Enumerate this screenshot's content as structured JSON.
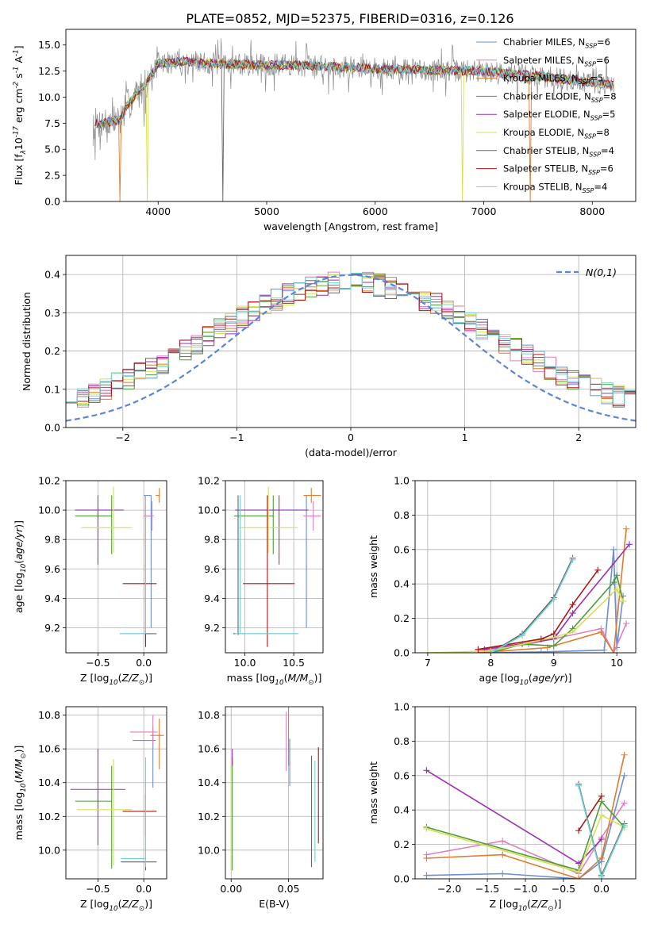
{
  "title": "PLATE=0852, MJD=52375, FIBERID=0316, z=0.126",
  "colors": {
    "chabrier_miles": "#6a8fd6",
    "salpeter_miles": "#e07fbf",
    "kroupa_miles": "#e07b2e",
    "chabrier_elodie": "#4f9a3a",
    "salpeter_elodie": "#9b30b0",
    "kroupa_elodie": "#d6e04e",
    "chabrier_stelib": "#666666",
    "salpeter_stelib": "#b01515",
    "kroupa_stelib": "#6fd4d4",
    "normal": "#5b86d6"
  },
  "chart_data": [
    {
      "type": "line",
      "panel": "spectrum",
      "xlabel": "wavelength [Angstrom, rest frame]",
      "ylabel": "Flux [f$_\\lambda$10$^{-17}$ erg cm$^{-2}$ s$^{-1}$ A$^{-1}$]",
      "xlim": [
        3150,
        8400
      ],
      "ylim": [
        0,
        16.5
      ],
      "xticks": [
        4000,
        5000,
        6000,
        7000,
        8000
      ],
      "yticks": [
        0.0,
        2.5,
        5.0,
        7.5,
        10.0,
        12.5,
        15.0
      ],
      "data_range": [
        3400,
        8200
      ],
      "continuum": {
        "x": [
          3400,
          3650,
          3700,
          3900,
          4000,
          4200,
          4500,
          5000,
          5500,
          6000,
          6500,
          7000,
          7500,
          8000,
          8200
        ],
        "y": [
          7.4,
          7.8,
          9.0,
          11.5,
          13.2,
          13.4,
          13.2,
          13.1,
          13.0,
          12.7,
          12.6,
          12.5,
          12.0,
          11.4,
          11.1
        ]
      },
      "legend": [
        {
          "label": "Chabrier MILES, N$_{SSP}$=6",
          "color_key": "chabrier_miles"
        },
        {
          "label": "Salpeter MILES, N$_{SSP}$=6",
          "color_key": "salpeter_miles"
        },
        {
          "label": "Kroupa MILES, N$_{SSP}$=5",
          "color_key": "kroupa_miles"
        },
        {
          "label": "Chabrier ELODIE, N$_{SSP}$=8",
          "color_key": "chabrier_elodie"
        },
        {
          "label": "Salpeter ELODIE, N$_{SSP}$=5",
          "color_key": "salpeter_elodie"
        },
        {
          "label": "Kroupa ELODIE, N$_{SSP}$=8",
          "color_key": "kroupa_elodie"
        },
        {
          "label": "Chabrier STELIB, N$_{SSP}$=4",
          "color_key": "chabrier_stelib"
        },
        {
          "label": "Salpeter STELIB, N$_{SSP}$=6",
          "color_key": "salpeter_stelib"
        },
        {
          "label": "Kroupa STELIB, N$_{SSP}$=4",
          "color_key": "kroupa_stelib"
        }
      ],
      "grid": false
    },
    {
      "type": "line",
      "panel": "residuals",
      "xlabel": "(data-model)/error",
      "ylabel": "Normed distribution",
      "xlim": [
        -2.5,
        2.5
      ],
      "ylim": [
        0,
        0.45
      ],
      "xticks": [
        -2,
        -1,
        0,
        1,
        2
      ],
      "yticks": [
        0.0,
        0.1,
        0.2,
        0.3,
        0.4
      ],
      "legend": [
        {
          "label": "$\\mathcal{N}(0,1)$",
          "color_key": "normal"
        }
      ],
      "grid": true,
      "histogram": {
        "bin_start": -2.5,
        "bin_width": 0.1,
        "n_bins": 50
      }
    },
    {
      "type": "scatter",
      "panel": "age-metallicity",
      "xlabel": "Z [log$_{10}$($Z/Z_\\odot$)]",
      "ylabel": "age  [log$_{10}$($age/yr$)]",
      "xlim": [
        -0.85,
        0.25
      ],
      "ylim": [
        9.03,
        10.2
      ],
      "xticks": [
        -0.5,
        0.0
      ],
      "yticks": [
        9.2,
        9.4,
        9.6,
        9.8,
        10.0,
        10.2
      ],
      "grid": true,
      "points": [
        {
          "color_key": "chabrier_miles",
          "x": 0.08,
          "xerr": [
            0.08,
            0.0
          ],
          "y": 10.1,
          "yerr": [
            0.9,
            0.0
          ]
        },
        {
          "color_key": "salpeter_miles",
          "x": 0.09,
          "xerr": [
            0.09,
            0.02
          ],
          "y": 9.96,
          "yerr": [
            0.1,
            0.1
          ]
        },
        {
          "color_key": "kroupa_miles",
          "x": 0.17,
          "xerr": [
            0.04,
            0.0
          ],
          "y": 10.1,
          "yerr": [
            0.05,
            0.05
          ]
        },
        {
          "color_key": "chabrier_elodie",
          "x": -0.35,
          "xerr": [
            0.4,
            0.0
          ],
          "y": 9.96,
          "yerr": [
            0.26,
            0.14
          ]
        },
        {
          "color_key": "salpeter_elodie",
          "x": -0.5,
          "xerr": [
            0.25,
            0.28
          ],
          "y": 10.0,
          "yerr": [
            0.37,
            0.1
          ]
        },
        {
          "color_key": "kroupa_elodie",
          "x": -0.33,
          "xerr": [
            0.35,
            0.2
          ],
          "y": 9.88,
          "yerr": [
            0.17,
            0.28
          ]
        },
        {
          "color_key": "chabrier_stelib",
          "x": 0.02,
          "xerr": [
            0.28,
            0.12
          ],
          "y": 9.16,
          "yerr": [
            0.01,
            0.94
          ]
        },
        {
          "color_key": "salpeter_stelib",
          "x": 0.02,
          "xerr": [
            0.25,
            0.12
          ],
          "y": 9.5,
          "yerr": [
            0.43,
            0.6
          ]
        },
        {
          "color_key": "kroupa_stelib",
          "x": 0.02,
          "xerr": [
            0.28,
            0.0
          ],
          "y": 9.16,
          "yerr": [
            0.0,
            0.94
          ]
        }
      ]
    },
    {
      "type": "scatter",
      "panel": "age-mass",
      "xlabel": "mass [log$_{10}$($M/M_\\odot$)]",
      "ylabel": "",
      "xlim": [
        9.8,
        10.8
      ],
      "ylim": [
        9.03,
        10.2
      ],
      "xticks": [
        10.0,
        10.5
      ],
      "yticks": [
        9.2,
        9.4,
        9.6,
        9.8,
        10.0,
        10.2
      ],
      "grid": true,
      "points": [
        {
          "color_key": "chabrier_miles",
          "x": 10.63,
          "xerr": [
            0.0,
            0.0
          ],
          "y": 10.1,
          "yerr": [
            0.9,
            0.0
          ]
        },
        {
          "color_key": "salpeter_miles",
          "x": 10.7,
          "xerr": [
            0.1,
            0.08
          ],
          "y": 9.96,
          "yerr": [
            0.1,
            0.1
          ]
        },
        {
          "color_key": "kroupa_miles",
          "x": 10.68,
          "xerr": [
            0.08,
            0.1
          ],
          "y": 10.1,
          "yerr": [
            0.05,
            0.05
          ]
        },
        {
          "color_key": "chabrier_elodie",
          "x": 10.29,
          "xerr": [
            0.4,
            0.0
          ],
          "y": 9.96,
          "yerr": [
            0.26,
            0.14
          ]
        },
        {
          "color_key": "salpeter_elodie",
          "x": 10.35,
          "xerr": [
            0.45,
            0.3
          ],
          "y": 10.0,
          "yerr": [
            0.37,
            0.1
          ]
        },
        {
          "color_key": "kroupa_elodie",
          "x": 10.24,
          "xerr": [
            0.3,
            0.3
          ],
          "y": 9.88,
          "yerr": [
            0.17,
            0.28
          ]
        },
        {
          "color_key": "chabrier_stelib",
          "x": 9.93,
          "xerr": [
            0.05,
            0.6
          ],
          "y": 9.16,
          "yerr": [
            0.01,
            0.94
          ]
        },
        {
          "color_key": "salpeter_stelib",
          "x": 10.23,
          "xerr": [
            0.25,
            0.28
          ],
          "y": 9.5,
          "yerr": [
            0.43,
            0.6
          ]
        },
        {
          "color_key": "kroupa_stelib",
          "x": 9.95,
          "xerr": [
            0.05,
            0.6
          ],
          "y": 9.16,
          "yerr": [
            0.0,
            0.94
          ]
        }
      ]
    },
    {
      "type": "line",
      "panel": "mass-weight-vs-age",
      "xlabel": "age  [log$_{10}$($age/yr$)]",
      "ylabel": "mass weight",
      "xlim": [
        6.8,
        10.3
      ],
      "ylim": [
        0,
        1
      ],
      "xticks": [
        7,
        8,
        9,
        10
      ],
      "yticks": [
        0.0,
        0.2,
        0.4,
        0.6,
        0.8,
        1.0
      ],
      "grid": true,
      "series": [
        {
          "color_key": "chabrier_miles",
          "x": [
            7.8,
            8.8,
            9.8,
            9.95,
            10.0,
            10.1
          ],
          "y": [
            0.0,
            0.005,
            0.015,
            0.6,
            0.03,
            0.33
          ]
        },
        {
          "color_key": "salpeter_miles",
          "x": [
            7.8,
            8.6,
            9.75,
            9.95,
            10.15
          ],
          "y": [
            0.01,
            0.05,
            0.14,
            0.0,
            0.17
          ]
        },
        {
          "color_key": "kroupa_miles",
          "x": [
            7.8,
            8.9,
            9.75,
            9.95,
            10.15
          ],
          "y": [
            0.0,
            0.03,
            0.12,
            0.0,
            0.72
          ]
        },
        {
          "color_key": "chabrier_elodie",
          "x": [
            8.0,
            8.5,
            9.0,
            9.3,
            9.95,
            10.0,
            10.1
          ],
          "y": [
            0.0,
            0.05,
            0.04,
            0.14,
            0.41,
            0.45,
            0.3
          ]
        },
        {
          "color_key": "salpeter_elodie",
          "x": [
            7.9,
            9.0,
            9.3,
            10.2
          ],
          "y": [
            0.02,
            0.08,
            0.23,
            0.63
          ]
        },
        {
          "color_key": "kroupa_elodie",
          "x": [
            7.0,
            8.0,
            9.0,
            9.3,
            10.0,
            10.1
          ],
          "y": [
            0.0,
            0.01,
            0.09,
            0.12,
            0.37,
            0.3
          ]
        },
        {
          "color_key": "chabrier_stelib",
          "x": [
            8.0,
            8.5,
            9.0,
            9.3
          ],
          "y": [
            0.0,
            0.11,
            0.32,
            0.55
          ]
        },
        {
          "color_key": "salpeter_stelib",
          "x": [
            7.8,
            8.8,
            9.0,
            9.3,
            9.7
          ],
          "y": [
            0.02,
            0.08,
            0.11,
            0.28,
            0.48
          ]
        },
        {
          "color_key": "kroupa_stelib",
          "x": [
            8.0,
            8.5,
            9.0,
            9.3
          ],
          "y": [
            0.0,
            0.1,
            0.31,
            0.54
          ]
        }
      ]
    },
    {
      "type": "scatter",
      "panel": "mass-metallicity",
      "xlabel": "Z [log$_{10}$($Z/Z_\\odot$)]",
      "ylabel": "mass [log$_{10}$($M/M_\\odot$)]",
      "xlim": [
        -0.85,
        0.25
      ],
      "ylim": [
        9.83,
        10.85
      ],
      "xticks": [
        -0.5,
        0.0
      ],
      "yticks": [
        10.0,
        10.2,
        10.4,
        10.6,
        10.8
      ],
      "grid": true,
      "points": [
        {
          "color_key": "chabrier_miles",
          "x": 0.1,
          "xerr": [
            0.22,
            0.03
          ],
          "y": 10.65,
          "yerr": [
            0.28,
            0.08
          ]
        },
        {
          "color_key": "salpeter_miles",
          "x": 0.1,
          "xerr": [
            0.25,
            0.05
          ],
          "y": 10.7,
          "yerr": [
            0.08,
            0.1
          ]
        },
        {
          "color_key": "kroupa_miles",
          "x": 0.17,
          "xerr": [
            0.1,
            0.05
          ],
          "y": 10.68,
          "yerr": [
            0.2,
            0.1
          ]
        },
        {
          "color_key": "chabrier_elodie",
          "x": -0.35,
          "xerr": [
            0.4,
            0.0
          ],
          "y": 10.29,
          "yerr": [
            0.4,
            0.21
          ]
        },
        {
          "color_key": "salpeter_elodie",
          "x": -0.5,
          "xerr": [
            0.3,
            0.3
          ],
          "y": 10.36,
          "yerr": [
            0.33,
            0.24
          ]
        },
        {
          "color_key": "kroupa_elodie",
          "x": -0.33,
          "xerr": [
            0.4,
            0.2
          ],
          "y": 10.24,
          "yerr": [
            0.33,
            0.3
          ]
        },
        {
          "color_key": "chabrier_stelib",
          "x": 0.02,
          "xerr": [
            0.27,
            0.12
          ],
          "y": 9.93,
          "yerr": [
            0.05,
            0.0
          ]
        },
        {
          "color_key": "salpeter_stelib",
          "x": 0.02,
          "xerr": [
            0.25,
            0.12
          ],
          "y": 10.23,
          "yerr": [
            0.15,
            0.1
          ]
        },
        {
          "color_key": "kroupa_stelib",
          "x": 0.02,
          "xerr": [
            0.27,
            0.0
          ],
          "y": 9.95,
          "yerr": [
            0.05,
            0.6
          ]
        }
      ]
    },
    {
      "type": "scatter",
      "panel": "mass-extinction",
      "xlabel": "E(B-V)",
      "ylabel": "",
      "xlim": [
        -0.005,
        0.08
      ],
      "ylim": [
        9.83,
        10.85
      ],
      "xticks": [
        0.0,
        0.05
      ],
      "yticks": [
        10.0,
        10.2,
        10.4,
        10.6,
        10.8
      ],
      "grid": true,
      "points": [
        {
          "color_key": "chabrier_miles",
          "x": 0.051,
          "xerr": [
            0.0,
            0.0
          ],
          "y": 10.58,
          "yerr": [
            0.2,
            0.08
          ]
        },
        {
          "color_key": "salpeter_miles",
          "x": 0.048,
          "xerr": [
            0.0,
            0.0
          ],
          "y": 10.7,
          "yerr": [
            0.23,
            0.12
          ]
        },
        {
          "color_key": "kroupa_miles",
          "x": 0.05,
          "xerr": [
            0.0,
            0.0
          ],
          "y": 10.7,
          "yerr": [
            0.2,
            0.15
          ]
        },
        {
          "color_key": "chabrier_elodie",
          "x": 0.001,
          "xerr": [
            0.0,
            0.0
          ],
          "y": 10.3,
          "yerr": [
            0.42,
            0.25
          ]
        },
        {
          "color_key": "salpeter_elodie",
          "x": 0.001,
          "xerr": [
            0.0,
            0.0
          ],
          "y": 10.55,
          "yerr": [
            0.05,
            0.05
          ]
        },
        {
          "color_key": "kroupa_elodie",
          "x": 0.0,
          "xerr": [
            0.0,
            0.0
          ],
          "y": 10.3,
          "yerr": [
            0.42,
            0.25
          ]
        },
        {
          "color_key": "chabrier_stelib",
          "x": 0.07,
          "xerr": [
            0.0,
            0.0
          ],
          "y": 10.2,
          "yerr": [
            0.3,
            0.36
          ]
        },
        {
          "color_key": "salpeter_stelib",
          "x": 0.076,
          "xerr": [
            0.0,
            0.0
          ],
          "y": 10.3,
          "yerr": [
            0.26,
            0.31
          ]
        },
        {
          "color_key": "kroupa_stelib",
          "x": 0.073,
          "xerr": [
            0.0,
            0.0
          ],
          "y": 10.2,
          "yerr": [
            0.27,
            0.33
          ]
        }
      ]
    },
    {
      "type": "line",
      "panel": "mass-weight-vs-metallicity",
      "xlabel": "Z [log$_{10}$($Z/Z_\\odot$)]",
      "ylabel": "mass weight",
      "xlim": [
        -2.45,
        0.45
      ],
      "ylim": [
        0,
        1
      ],
      "xticks": [
        -2.0,
        -1.5,
        -1.0,
        -0.5,
        0.0
      ],
      "yticks": [
        0.0,
        0.2,
        0.4,
        0.6,
        0.8,
        1.0
      ],
      "grid": true,
      "series": [
        {
          "color_key": "chabrier_miles",
          "x": [
            -2.3,
            -1.3,
            -0.3,
            0.0,
            0.3
          ],
          "y": [
            0.02,
            0.03,
            0.0,
            0.1,
            0.6
          ]
        },
        {
          "color_key": "salpeter_miles",
          "x": [
            -2.3,
            -1.3,
            -0.3,
            0.0,
            0.3
          ],
          "y": [
            0.14,
            0.22,
            0.03,
            0.24,
            0.44
          ]
        },
        {
          "color_key": "kroupa_miles",
          "x": [
            -2.3,
            -1.3,
            -0.3,
            0.0,
            0.3
          ],
          "y": [
            0.12,
            0.14,
            0.0,
            0.12,
            0.72
          ]
        },
        {
          "color_key": "chabrier_elodie",
          "x": [
            -2.3,
            -0.3,
            0.0,
            0.3
          ],
          "y": [
            0.3,
            0.05,
            0.45,
            0.3
          ]
        },
        {
          "color_key": "salpeter_elodie",
          "x": [
            -2.3,
            -0.3,
            0.0
          ],
          "y": [
            0.63,
            0.09,
            0.23
          ]
        },
        {
          "color_key": "kroupa_elodie",
          "x": [
            -2.3,
            -0.3,
            0.0,
            0.3
          ],
          "y": [
            0.29,
            0.04,
            0.37,
            0.3
          ]
        },
        {
          "color_key": "chabrier_stelib",
          "x": [
            -0.3,
            0.0,
            0.3
          ],
          "y": [
            0.55,
            0.02,
            0.32
          ]
        },
        {
          "color_key": "salpeter_stelib",
          "x": [
            -0.3,
            0.0
          ],
          "y": [
            0.28,
            0.48
          ]
        },
        {
          "color_key": "kroupa_stelib",
          "x": [
            -0.3,
            0.0,
            0.3
          ],
          "y": [
            0.54,
            0.01,
            0.31
          ]
        }
      ]
    }
  ]
}
